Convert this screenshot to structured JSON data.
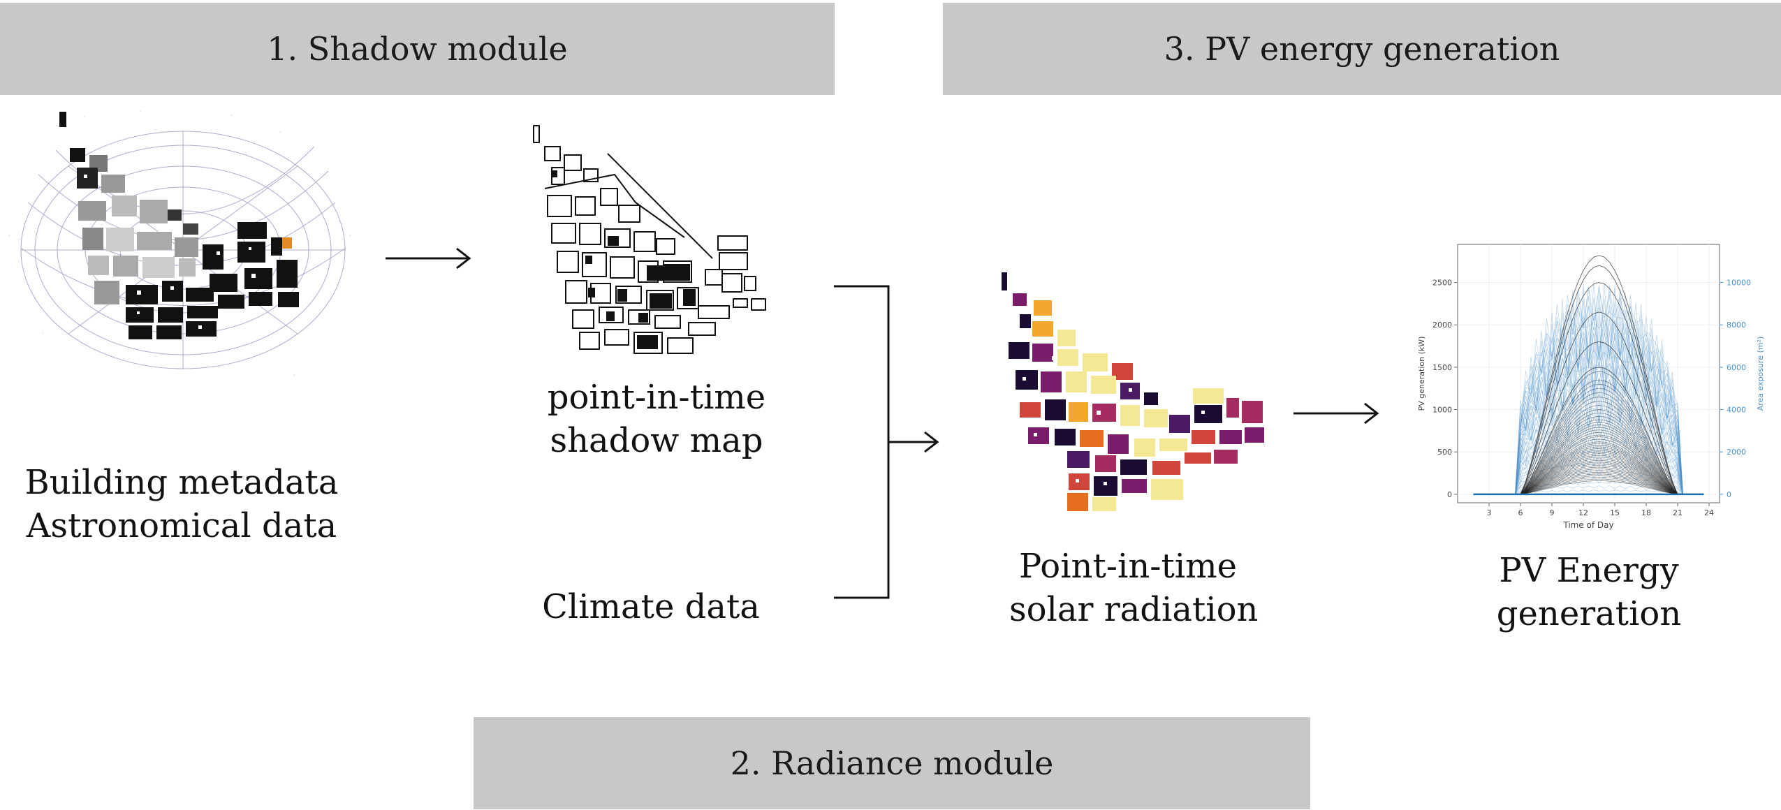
{
  "banners": {
    "shadow": "1. Shadow module",
    "radiance": "2. Radiance module",
    "pv": "3. PV energy generation"
  },
  "captions": {
    "building_line1": "Building metadata",
    "building_line2": "Astronomical data",
    "shadow_line1": "point-in-time",
    "shadow_line2": "shadow map",
    "climate": "Climate data",
    "solar_line1": "Point-in-time",
    "solar_line2": "solar radiation",
    "pv_line1": "PV Energy",
    "pv_line2": "generation"
  },
  "colors": {
    "banner": "#c8c8c8",
    "inferno": [
      "#1a0c32",
      "#4c1a63",
      "#7c1d6b",
      "#a42c60",
      "#d0453c",
      "#e56f1e",
      "#f2a62d",
      "#f4e896"
    ],
    "pv_line": "#222222",
    "exposure_line": "#4a90c8"
  },
  "chart_data": {
    "type": "line",
    "xlabel": "Time of Day",
    "ylabel": "PV generation (kW)",
    "y2label": "Area exposure (m²)",
    "x_ticks": [
      3,
      6,
      9,
      12,
      15,
      18,
      21,
      24
    ],
    "y_ticks": [
      0,
      500,
      1000,
      1500,
      2000,
      2500
    ],
    "y2_ticks": [
      0,
      2000,
      4000,
      6000,
      8000,
      10000
    ],
    "xlim": [
      0,
      25
    ],
    "ylim": [
      -100,
      2950
    ],
    "y2lim": [
      -400,
      11800
    ],
    "sunrise": 6,
    "sunset": 21,
    "peak_hour": 13,
    "series_peaks": [
      2820,
      2700,
      2500,
      2150,
      1800,
      1500,
      1450,
      1350,
      1300,
      1250,
      1200,
      1150,
      1100,
      1050,
      1000,
      960,
      920,
      880,
      850,
      820,
      790,
      760,
      730,
      700,
      680,
      650,
      620,
      600,
      580,
      560,
      540,
      520,
      500,
      480,
      460,
      440,
      420,
      400,
      380,
      360,
      340,
      320,
      300,
      280,
      260,
      240,
      220,
      200,
      180,
      160
    ]
  }
}
